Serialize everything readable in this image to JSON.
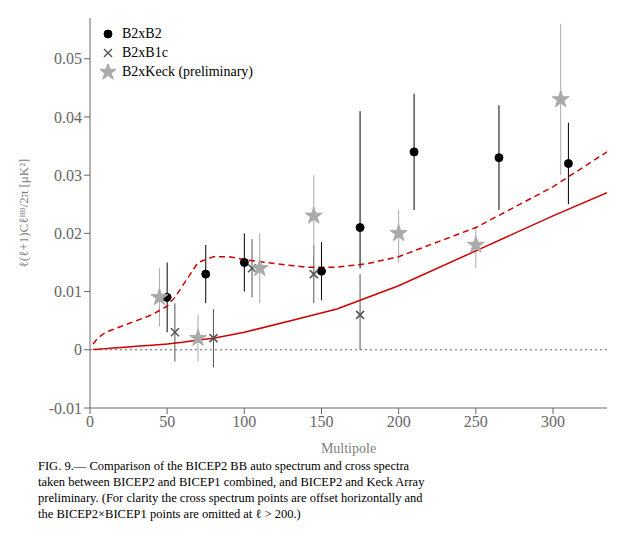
{
  "chart_data": {
    "type": "scatter",
    "xlabel": "Multipole",
    "ylabel": "ℓ(ℓ+1)Cℓᴮᴮ/2π [μK²]",
    "xlim": [
      0,
      335
    ],
    "ylim": [
      -0.01,
      0.057
    ],
    "xticks": [
      0,
      50,
      100,
      150,
      200,
      250,
      300
    ],
    "yticks": [
      -0.01,
      0.0,
      0.01,
      0.02,
      0.03,
      0.04,
      0.05
    ],
    "grid": false,
    "legend": "upper left",
    "reference_lines": [
      {
        "y": 0,
        "color": "#666666",
        "line_style": "dotted"
      }
    ],
    "series": [
      {
        "type": "line",
        "color": "#cc0000",
        "line_style": "solid",
        "x": [
          2,
          5,
          10,
          15,
          20,
          25,
          30,
          40,
          50,
          60,
          70,
          80,
          100,
          130,
          160,
          200,
          250,
          300,
          335
        ],
        "values": [
          5e-05,
          0.0001,
          0.0002,
          0.0003,
          0.0004,
          0.0005,
          0.0006,
          0.0008,
          0.001,
          0.0013,
          0.0017,
          0.002,
          0.003,
          0.005,
          0.007,
          0.011,
          0.017,
          0.023,
          0.027
        ]
      },
      {
        "type": "line",
        "color": "#cc0000",
        "line_style": "dashed",
        "x": [
          2,
          5,
          10,
          20,
          30,
          40,
          50,
          55,
          60,
          65,
          70,
          80,
          90,
          100,
          120,
          140,
          160,
          180,
          200,
          250,
          300,
          335
        ],
        "values": [
          0.001,
          0.002,
          0.003,
          0.004,
          0.005,
          0.006,
          0.0075,
          0.009,
          0.011,
          0.013,
          0.015,
          0.016,
          0.016,
          0.0155,
          0.0148,
          0.0142,
          0.0142,
          0.0148,
          0.016,
          0.021,
          0.028,
          0.034
        ]
      },
      {
        "name": "B2xB2",
        "type": "scatter",
        "marker": "circle",
        "color": "#000000",
        "x": [
          50,
          75,
          100,
          150,
          175,
          210,
          265,
          310
        ],
        "values": [
          0.009,
          0.013,
          0.015,
          0.0135,
          0.021,
          0.034,
          0.033,
          0.032
        ],
        "yerr_lo": [
          0.006,
          0.005,
          0.005,
          0.005,
          0.007,
          0.01,
          0.009,
          0.007
        ],
        "yerr_hi": [
          0.006,
          0.005,
          0.005,
          0.005,
          0.02,
          0.01,
          0.009,
          0.007
        ]
      },
      {
        "name": "B2xB1c",
        "type": "scatter",
        "marker": "x",
        "color": "#555555",
        "x": [
          55,
          80,
          105,
          145,
          175
        ],
        "values": [
          0.003,
          0.002,
          0.014,
          0.013,
          0.006
        ],
        "yerr_lo": [
          0.005,
          0.005,
          0.005,
          0.005,
          0.006
        ],
        "yerr_hi": [
          0.005,
          0.005,
          0.005,
          0.005,
          0.007
        ]
      },
      {
        "name": "B2xKeck (preliminary)",
        "type": "scatter",
        "marker": "star",
        "color": "#aaaaaa",
        "x": [
          45,
          70,
          110,
          145,
          200,
          250,
          305
        ],
        "values": [
          0.009,
          0.002,
          0.014,
          0.023,
          0.02,
          0.018,
          0.043
        ],
        "yerr_lo": [
          0.005,
          0.004,
          0.006,
          0.007,
          0.005,
          0.004,
          0.013
        ],
        "yerr_hi": [
          0.005,
          0.004,
          0.006,
          0.007,
          0.004,
          0.003,
          0.013
        ]
      }
    ],
    "caption": [
      "FIG. 9.— Comparison of the BICEP2 BB auto spectrum and cross spectra",
      "taken between BICEP2 and BICEP1 combined, and BICEP2 and Keck Array",
      "preliminary. (For clarity the cross spectrum points are offset horizontally and",
      "the BICEP2×BICEP1 points are omitted at ℓ > 200.)"
    ]
  }
}
